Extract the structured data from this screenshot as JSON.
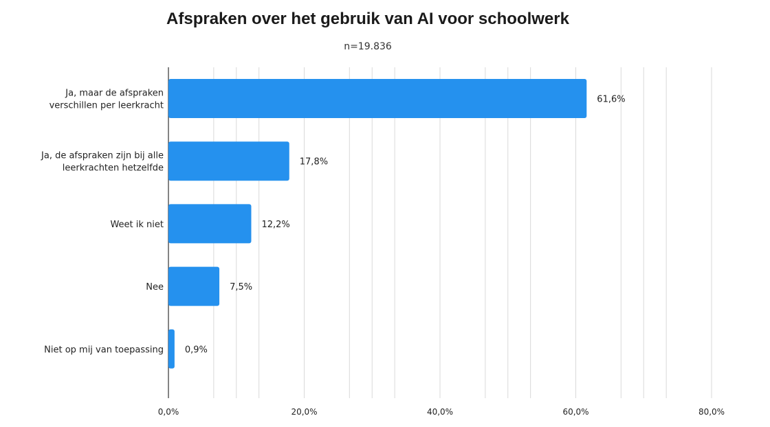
{
  "chart_data": {
    "type": "bar",
    "orientation": "horizontal",
    "title": "Afspraken over het gebruik van AI voor schoolwerk",
    "subtitle": "n=19.836",
    "categories": [
      [
        "Ja, maar de afspraken",
        "verschillen per leerkracht"
      ],
      [
        "Ja, de afspraken zijn bij alle",
        "leerkrachten hetzelfde"
      ],
      [
        "Weet ik niet"
      ],
      [
        "Nee"
      ],
      [
        "Niet op mij van toepassing"
      ]
    ],
    "values": [
      61.6,
      17.8,
      12.2,
      7.5,
      0.9
    ],
    "value_labels": [
      "61,6%",
      "17,8%",
      "12,2%",
      "7,5%",
      "0,9%"
    ],
    "xlim": [
      0,
      80
    ],
    "x_ticks": [
      0,
      20,
      40,
      60,
      80
    ],
    "x_tick_labels": [
      "0,0%",
      "20,0%",
      "40,0%",
      "60,0%",
      "80,0%"
    ],
    "grid": true,
    "bar_color": "#2591ee",
    "grid_color": "#d9d9d9",
    "axis_color": "#333333"
  }
}
